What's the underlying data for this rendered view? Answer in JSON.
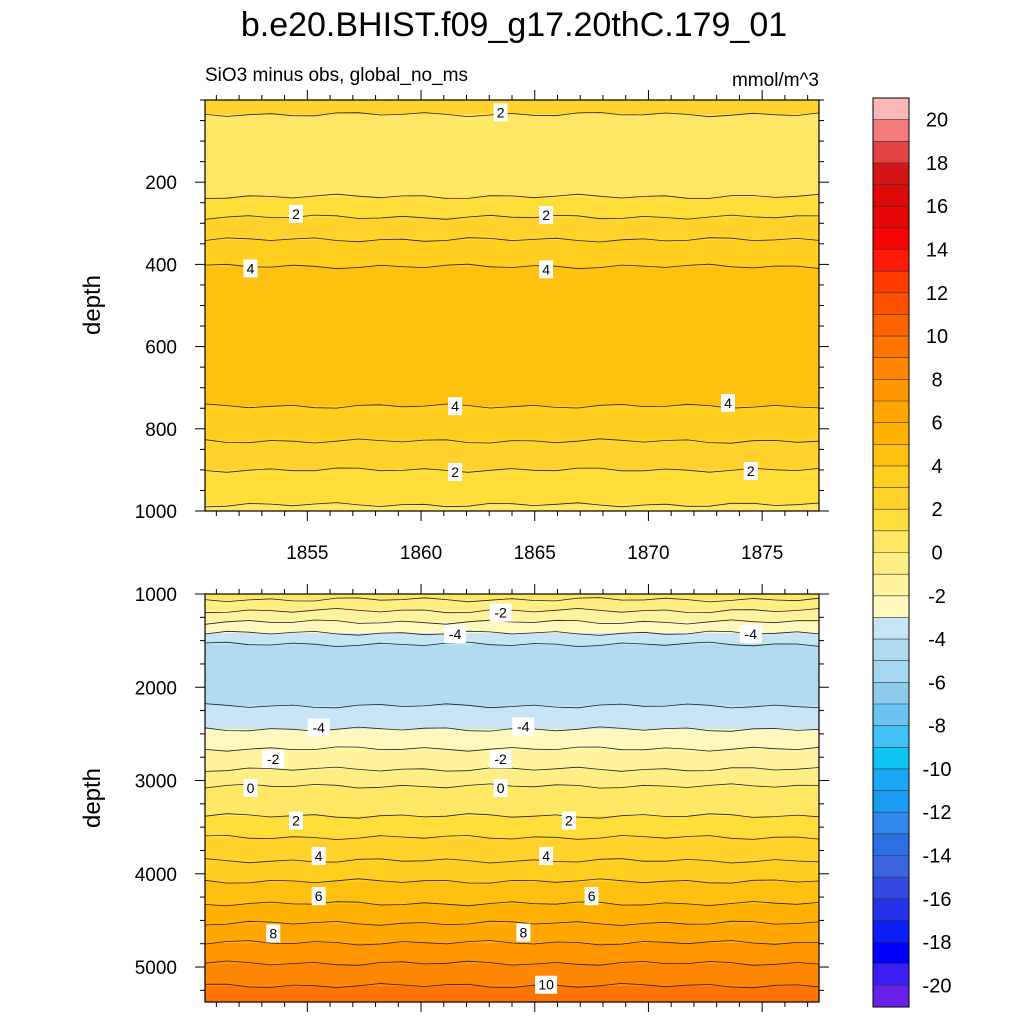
{
  "figure": {
    "title": "b.e20.BHIST.f09_g17.20thC.179_01",
    "subtitle_left": "SiO3 minus obs, global_no_ms",
    "subtitle_right": "mmol/m^3"
  },
  "chart_data": [
    {
      "type": "heatmap",
      "panel": "upper",
      "ylabel": "depth",
      "xlabel": "",
      "x_range": [
        1850.5,
        1877.5
      ],
      "y_range": [
        0,
        1000
      ],
      "y_reversed": true,
      "x_ticks": [
        1855,
        1860,
        1865,
        1870,
        1875
      ],
      "y_ticks": [
        200,
        400,
        600,
        800,
        1000
      ],
      "bands": [
        {
          "top": 0,
          "bottom": 35,
          "value": 2.5
        },
        {
          "top": 35,
          "bottom": 235,
          "value": 0.5
        },
        {
          "top": 235,
          "bottom": 285,
          "value": 1.5
        },
        {
          "top": 285,
          "bottom": 340,
          "value": 2.5
        },
        {
          "top": 340,
          "bottom": 405,
          "value": 3.5
        },
        {
          "top": 405,
          "bottom": 745,
          "value": 4.5
        },
        {
          "top": 745,
          "bottom": 830,
          "value": 3.5
        },
        {
          "top": 830,
          "bottom": 900,
          "value": 2.5
        },
        {
          "top": 900,
          "bottom": 985,
          "value": 1.5
        },
        {
          "top": 985,
          "bottom": 1000,
          "value": 0.5
        }
      ],
      "contour_depths": [
        35,
        235,
        285,
        340,
        405,
        745,
        830,
        900,
        985
      ],
      "contour_labels": [
        {
          "text": "2",
          "x": 1863.5,
          "depth": 30
        },
        {
          "text": "2",
          "x": 1854.5,
          "depth": 277
        },
        {
          "text": "2",
          "x": 1865.5,
          "depth": 280
        },
        {
          "text": "4",
          "x": 1852.5,
          "depth": 410
        },
        {
          "text": "4",
          "x": 1865.5,
          "depth": 412
        },
        {
          "text": "4",
          "x": 1861.5,
          "depth": 745
        },
        {
          "text": "4",
          "x": 1873.5,
          "depth": 737
        },
        {
          "text": "2",
          "x": 1861.5,
          "depth": 905
        },
        {
          "text": "2",
          "x": 1874.5,
          "depth": 903
        }
      ]
    },
    {
      "type": "heatmap",
      "panel": "lower",
      "ylabel": "depth",
      "xlabel": "",
      "x_range": [
        1850.5,
        1877.5
      ],
      "y_range": [
        1000,
        5375
      ],
      "y_reversed": true,
      "x_ticks": [
        1855,
        1860,
        1865,
        1870,
        1875
      ],
      "y_ticks": [
        1000,
        2000,
        3000,
        4000,
        5000
      ],
      "bands": [
        {
          "top": 1000,
          "bottom": 1060,
          "value": 0.5
        },
        {
          "top": 1060,
          "bottom": 1180,
          "value": -0.5
        },
        {
          "top": 1180,
          "bottom": 1300,
          "value": -1.5
        },
        {
          "top": 1300,
          "bottom": 1420,
          "value": -2.5
        },
        {
          "top": 1420,
          "bottom": 1540,
          "value": -3.5
        },
        {
          "top": 1540,
          "bottom": 2200,
          "value": -4.5
        },
        {
          "top": 2200,
          "bottom": 2450,
          "value": -3.5
        },
        {
          "top": 2450,
          "bottom": 2660,
          "value": -2.5
        },
        {
          "top": 2660,
          "bottom": 2880,
          "value": -1.5
        },
        {
          "top": 2880,
          "bottom": 3060,
          "value": -0.5
        },
        {
          "top": 3060,
          "bottom": 3380,
          "value": 0.5
        },
        {
          "top": 3380,
          "bottom": 3610,
          "value": 1.5
        },
        {
          "top": 3610,
          "bottom": 3860,
          "value": 2.5
        },
        {
          "top": 3860,
          "bottom": 4080,
          "value": 3.5
        },
        {
          "top": 4080,
          "bottom": 4320,
          "value": 4.5
        },
        {
          "top": 4320,
          "bottom": 4530,
          "value": 5.5
        },
        {
          "top": 4530,
          "bottom": 4740,
          "value": 6.5
        },
        {
          "top": 4740,
          "bottom": 4960,
          "value": 7.5
        },
        {
          "top": 4960,
          "bottom": 5200,
          "value": 8.5
        },
        {
          "top": 5200,
          "bottom": 5375,
          "value": 9.5
        }
      ],
      "contour_depths": [
        1060,
        1180,
        1300,
        1420,
        1540,
        2200,
        2450,
        2660,
        2880,
        3060,
        3380,
        3610,
        3860,
        4080,
        4320,
        4530,
        4740,
        4960,
        5200
      ],
      "contour_labels": [
        {
          "text": "-2",
          "x": 1863.5,
          "depth": 1200
        },
        {
          "text": "-4",
          "x": 1861.5,
          "depth": 1430
        },
        {
          "text": "-4",
          "x": 1874.5,
          "depth": 1430
        },
        {
          "text": "-4",
          "x": 1855.5,
          "depth": 2430
        },
        {
          "text": "-4",
          "x": 1864.5,
          "depth": 2420
        },
        {
          "text": "-2",
          "x": 1853.5,
          "depth": 2770
        },
        {
          "text": "-2",
          "x": 1863.5,
          "depth": 2770
        },
        {
          "text": "0",
          "x": 1852.5,
          "depth": 3080
        },
        {
          "text": "0",
          "x": 1863.5,
          "depth": 3080
        },
        {
          "text": "2",
          "x": 1854.5,
          "depth": 3430
        },
        {
          "text": "2",
          "x": 1866.5,
          "depth": 3430
        },
        {
          "text": "4",
          "x": 1855.5,
          "depth": 3810
        },
        {
          "text": "4",
          "x": 1865.5,
          "depth": 3810
        },
        {
          "text": "6",
          "x": 1855.5,
          "depth": 4240
        },
        {
          "text": "6",
          "x": 1867.5,
          "depth": 4240
        },
        {
          "text": "8",
          "x": 1853.5,
          "depth": 4640
        },
        {
          "text": "8",
          "x": 1864.5,
          "depth": 4630
        },
        {
          "text": "10",
          "x": 1865.5,
          "depth": 5190
        }
      ]
    }
  ],
  "colorbar": {
    "units": "mmol/m^3",
    "range": [
      -21,
      21
    ],
    "step": 1,
    "labels": [
      "20",
      "18",
      "16",
      "14",
      "12",
      "10",
      "8",
      "6",
      "4",
      "2",
      "0",
      "-2",
      "-4",
      "-6",
      "-8",
      "-10",
      "-12",
      "-14",
      "-16",
      "-18",
      "-20"
    ],
    "colors_top_to_bottom": [
      "#f9b7b7",
      "#f27a7a",
      "#e24444",
      "#d51616",
      "#dd0a0a",
      "#e80505",
      "#f40404",
      "#ff1a0a",
      "#ff3c00",
      "#ff5200",
      "#ff6300",
      "#ff7400",
      "#ff8600",
      "#ff9600",
      "#ffa700",
      "#ffb300",
      "#ffc10f",
      "#ffce1f",
      "#ffd32b",
      "#ffdd3a",
      "#ffe766",
      "#ffee84",
      "#fff39f",
      "#fff9bd",
      "#c6e4f4",
      "#b3dbf0",
      "#a5d7f0",
      "#8dcbed",
      "#6ac3f0",
      "#41c0f5",
      "#0ec3f5",
      "#1aa8f5",
      "#1a9cf5",
      "#2f86eb",
      "#2e6ee3",
      "#3c64de",
      "#3548e0",
      "#2433ea",
      "#0d1ff7",
      "#0000ff",
      "#3c1ef2",
      "#6a22ea"
    ]
  }
}
